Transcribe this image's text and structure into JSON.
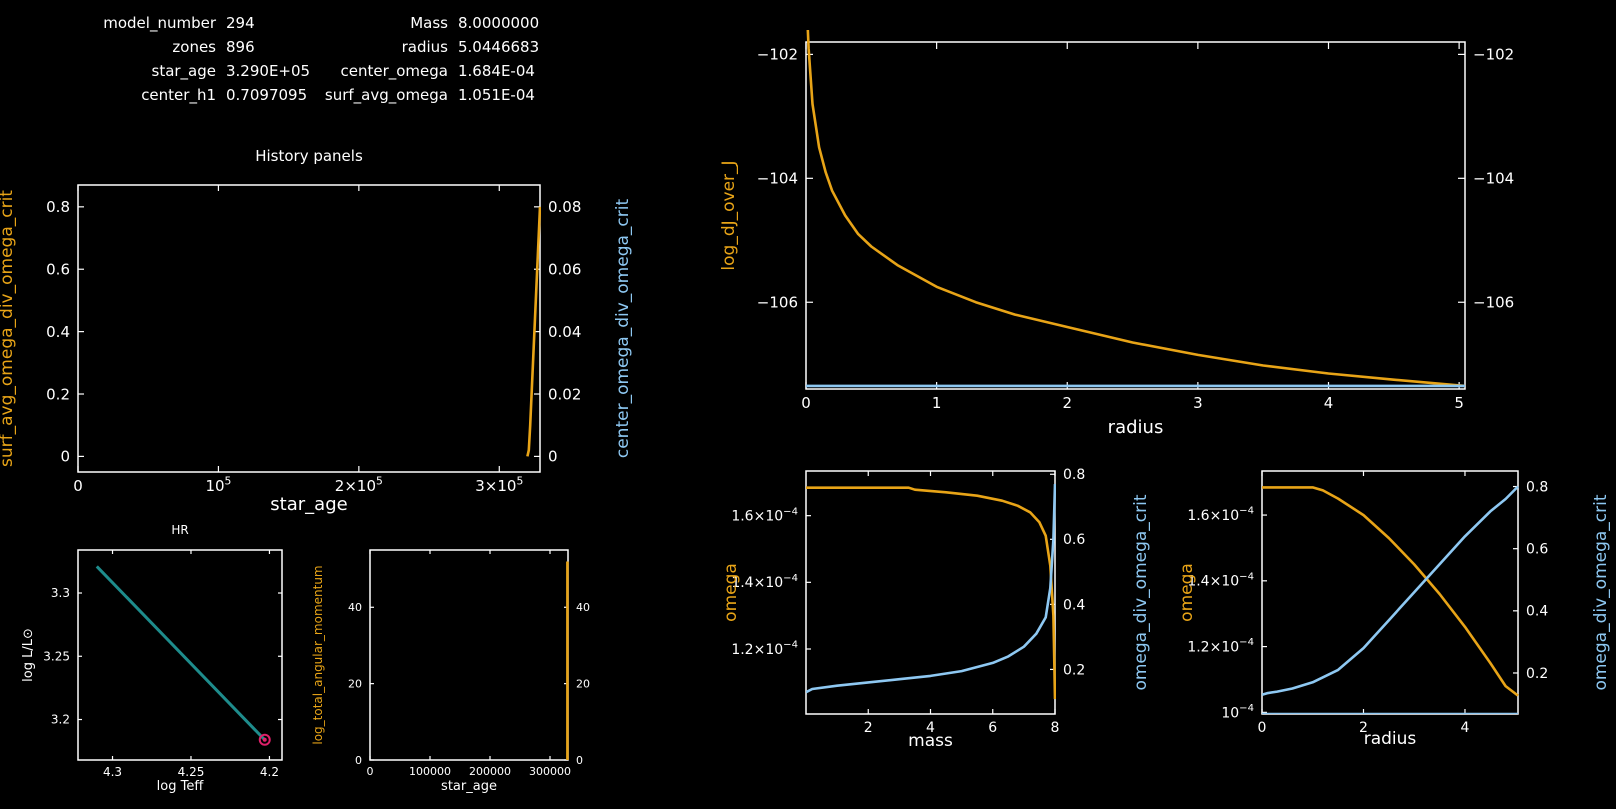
{
  "info": {
    "left": [
      {
        "label": "model_number",
        "value": "294"
      },
      {
        "label": "zones",
        "value": "896"
      },
      {
        "label": "star_age",
        "value": "3.290E+05"
      },
      {
        "label": "center_h1",
        "value": "0.7097095"
      }
    ],
    "right": [
      {
        "label": "Mass",
        "value": "8.0000000"
      },
      {
        "label": "radius",
        "value": "5.0446683"
      },
      {
        "label": "center_omega",
        "value": "1.684E-04"
      },
      {
        "label": "surf_avg_omega",
        "value": "1.051E-04"
      }
    ]
  },
  "colors": {
    "orange": "#e8a417",
    "blue": "#8ec8f2",
    "teal": "#1e8c8c",
    "red": "#e0206a",
    "axis": "#ffffff",
    "background": "#000000"
  },
  "chart_data": [
    {
      "id": "history",
      "type": "line",
      "title": "History panels",
      "xlabel": "star_age",
      "ylabel": "surf_avg_omega_div_omega_crit",
      "ylabel_right": "center_omega_div_omega_crit",
      "xlim": [
        0,
        329000
      ],
      "ylim": [
        -0.05,
        0.87
      ],
      "ylim_right": [
        -0.005,
        0.087
      ],
      "xticks": [
        {
          "v": 0,
          "label": "0"
        },
        {
          "v": 100000,
          "label": "10^5"
        },
        {
          "v": 200000,
          "label": "2×10^5"
        },
        {
          "v": 300000,
          "label": "3×10^5"
        }
      ],
      "yticks": [
        {
          "v": 0,
          "label": "0"
        },
        {
          "v": 0.2,
          "label": "0.2"
        },
        {
          "v": 0.4,
          "label": "0.4"
        },
        {
          "v": 0.6,
          "label": "0.6"
        },
        {
          "v": 0.8,
          "label": "0.8"
        }
      ],
      "yticks_right": [
        {
          "v": 0,
          "label": "0"
        },
        {
          "v": 0.02,
          "label": "0.02"
        },
        {
          "v": 0.04,
          "label": "0.04"
        },
        {
          "v": 0.06,
          "label": "0.06"
        },
        {
          "v": 0.08,
          "label": "0.08"
        }
      ],
      "series": [
        {
          "color": "orange",
          "axis": "left",
          "x": [
            320000,
            321000,
            322000,
            324000,
            326000,
            327500,
            328500,
            329000
          ],
          "y": [
            0,
            0.02,
            0.1,
            0.3,
            0.5,
            0.65,
            0.75,
            0.8
          ]
        }
      ]
    },
    {
      "id": "hr",
      "type": "line",
      "title": "HR",
      "xlabel": "log Teff",
      "ylabel": "log L/L⊙",
      "xlim": [
        4.322,
        4.192
      ],
      "ylim": [
        3.168,
        3.334
      ],
      "xticks": [
        {
          "v": 4.3,
          "label": "4.3"
        },
        {
          "v": 4.25,
          "label": "4.25"
        },
        {
          "v": 4.2,
          "label": "4.2"
        }
      ],
      "yticks": [
        {
          "v": 3.2,
          "label": "3.2"
        },
        {
          "v": 3.25,
          "label": "3.25"
        },
        {
          "v": 3.3,
          "label": "3.3"
        }
      ],
      "series": [
        {
          "color": "teal",
          "x": [
            4.31,
            4.203
          ],
          "y": [
            3.321,
            3.184
          ]
        }
      ],
      "marker": {
        "x": 4.203,
        "y": 3.184,
        "color": "red"
      }
    },
    {
      "id": "angmom",
      "type": "line",
      "xlabel": "star_age",
      "ylabel": "log_total_angular_momentum",
      "xlim": [
        0,
        330000
      ],
      "ylim": [
        0,
        55
      ],
      "xticks": [
        {
          "v": 0,
          "label": "0"
        },
        {
          "v": 100000,
          "label": "100000"
        },
        {
          "v": 200000,
          "label": "200000"
        },
        {
          "v": 300000,
          "label": "300000"
        }
      ],
      "yticks": [
        {
          "v": 0,
          "label": "0"
        },
        {
          "v": 20,
          "label": "20"
        },
        {
          "v": 40,
          "label": "40"
        }
      ],
      "yticks_right": [
        {
          "v": 0,
          "label": "0"
        },
        {
          "v": 20,
          "label": "20"
        },
        {
          "v": 40,
          "label": "40"
        }
      ],
      "series": [
        {
          "color": "orange",
          "x": [
            329000,
            329000
          ],
          "y": [
            0,
            52
          ]
        }
      ]
    },
    {
      "id": "djoverj",
      "type": "line",
      "xlabel": "radius",
      "ylabel": "log_dJ_over_J",
      "xlim": [
        0,
        5.045
      ],
      "ylim": [
        -107.4,
        -101.8
      ],
      "xticks": [
        {
          "v": 0,
          "label": "0"
        },
        {
          "v": 1,
          "label": "1"
        },
        {
          "v": 2,
          "label": "2"
        },
        {
          "v": 3,
          "label": "3"
        },
        {
          "v": 4,
          "label": "4"
        },
        {
          "v": 5,
          "label": "5"
        }
      ],
      "yticks": [
        {
          "v": -102,
          "label": "−102"
        },
        {
          "v": -104,
          "label": "−104"
        },
        {
          "v": -106,
          "label": "−106"
        }
      ],
      "yticks_right": [
        {
          "v": -102,
          "label": "−102"
        },
        {
          "v": -104,
          "label": "−104"
        },
        {
          "v": -106,
          "label": "−106"
        }
      ],
      "series": [
        {
          "color": "orange",
          "x": [
            0.0,
            0.02,
            0.05,
            0.1,
            0.15,
            0.2,
            0.3,
            0.4,
            0.5,
            0.7,
            1.0,
            1.3,
            1.6,
            2.0,
            2.5,
            3.0,
            3.5,
            4.0,
            4.5,
            5.045
          ],
          "y": [
            -100.9,
            -101.9,
            -102.8,
            -103.5,
            -103.9,
            -104.2,
            -104.6,
            -104.9,
            -105.1,
            -105.4,
            -105.75,
            -106.0,
            -106.2,
            -106.4,
            -106.65,
            -106.85,
            -107.02,
            -107.15,
            -107.25,
            -107.35
          ]
        },
        {
          "color": "blue",
          "x": [
            0,
            5.045
          ],
          "y": [
            -107.35,
            -107.35
          ]
        }
      ]
    },
    {
      "id": "omega_mass",
      "type": "line",
      "xlabel": "mass",
      "ylabel": "omega",
      "ylabel_right": "omega_div_omega_crit",
      "xlim": [
        0,
        8
      ],
      "ylim": [
        0.0001005,
        0.0001734
      ],
      "ylim_right": [
        0.063,
        0.81
      ],
      "xticks": [
        {
          "v": 2,
          "label": "2"
        },
        {
          "v": 4,
          "label": "4"
        },
        {
          "v": 6,
          "label": "6"
        },
        {
          "v": 8,
          "label": "8"
        }
      ],
      "yticks": [
        {
          "v": 0.00012,
          "label": "1.2×10^−4"
        },
        {
          "v": 0.00014,
          "label": "1.4×10^−4"
        },
        {
          "v": 0.00016,
          "label": "1.6×10^−4"
        }
      ],
      "yticks_right": [
        {
          "v": 0.2,
          "label": "0.2"
        },
        {
          "v": 0.4,
          "label": "0.4"
        },
        {
          "v": 0.6,
          "label": "0.6"
        },
        {
          "v": 0.8,
          "label": "0.8"
        }
      ],
      "series": [
        {
          "color": "orange",
          "axis": "left",
          "x": [
            0.0,
            1.0,
            2.0,
            3.3,
            3.5,
            4.5,
            5.5,
            6.3,
            6.8,
            7.2,
            7.5,
            7.7,
            7.85,
            7.95,
            8.0
          ],
          "y": [
            0.0001684,
            0.0001684,
            0.0001684,
            0.0001684,
            0.0001678,
            0.000167,
            0.000166,
            0.0001645,
            0.000163,
            0.000161,
            0.000158,
            0.000154,
            0.000145,
            0.00013,
            0.000105
          ]
        },
        {
          "color": "blue",
          "axis": "right",
          "x": [
            0.0,
            0.2,
            1.0,
            2.0,
            3.0,
            4.0,
            5.0,
            6.0,
            6.5,
            7.0,
            7.4,
            7.7,
            7.85,
            7.95,
            8.0
          ],
          "y": [
            0.13,
            0.14,
            0.15,
            0.16,
            0.17,
            0.18,
            0.195,
            0.22,
            0.24,
            0.27,
            0.31,
            0.36,
            0.45,
            0.6,
            0.77
          ]
        }
      ]
    },
    {
      "id": "omega_radius",
      "type": "line",
      "xlabel": "radius",
      "ylabel": "omega",
      "ylabel_right": "omega_div_omega_crit",
      "xlim": [
        0,
        5.045
      ],
      "ylim": [
        9.95e-05,
        0.0001734
      ],
      "ylim_right": [
        0.068,
        0.85
      ],
      "xticks": [
        {
          "v": 0,
          "label": "0"
        },
        {
          "v": 2,
          "label": "2"
        },
        {
          "v": 4,
          "label": "4"
        }
      ],
      "yticks": [
        {
          "v": 0.0001,
          "label": "10^−4"
        },
        {
          "v": 0.00012,
          "label": "1.2×10^−4"
        },
        {
          "v": 0.00014,
          "label": "1.4×10^−4"
        },
        {
          "v": 0.00016,
          "label": "1.6×10^−4"
        }
      ],
      "yticks_right": [
        {
          "v": 0.2,
          "label": "0.2"
        },
        {
          "v": 0.4,
          "label": "0.4"
        },
        {
          "v": 0.6,
          "label": "0.6"
        },
        {
          "v": 0.8,
          "label": "0.8"
        }
      ],
      "series": [
        {
          "color": "orange",
          "axis": "left",
          "x": [
            0.0,
            0.5,
            1.0,
            1.2,
            1.5,
            2.0,
            2.5,
            3.0,
            3.5,
            4.0,
            4.5,
            4.8,
            5.045
          ],
          "y": [
            0.0001684,
            0.0001684,
            0.0001684,
            0.0001675,
            0.000165,
            0.00016,
            0.000153,
            0.000145,
            0.000136,
            0.000126,
            0.000115,
            0.000108,
            0.0001051
          ]
        },
        {
          "color": "blue",
          "axis": "right",
          "x": [
            0.0,
            0.1,
            0.3,
            0.6,
            1.0,
            1.5,
            2.0,
            2.5,
            3.0,
            3.5,
            4.0,
            4.5,
            4.8,
            5.045
          ],
          "y": [
            0.13,
            0.135,
            0.14,
            0.15,
            0.17,
            0.21,
            0.28,
            0.37,
            0.46,
            0.55,
            0.64,
            0.72,
            0.76,
            0.8
          ]
        },
        {
          "color": "blue",
          "axis": "left",
          "x": [
            0,
            5.045
          ],
          "y": [
            9.95e-05,
            9.95e-05
          ]
        }
      ]
    }
  ]
}
